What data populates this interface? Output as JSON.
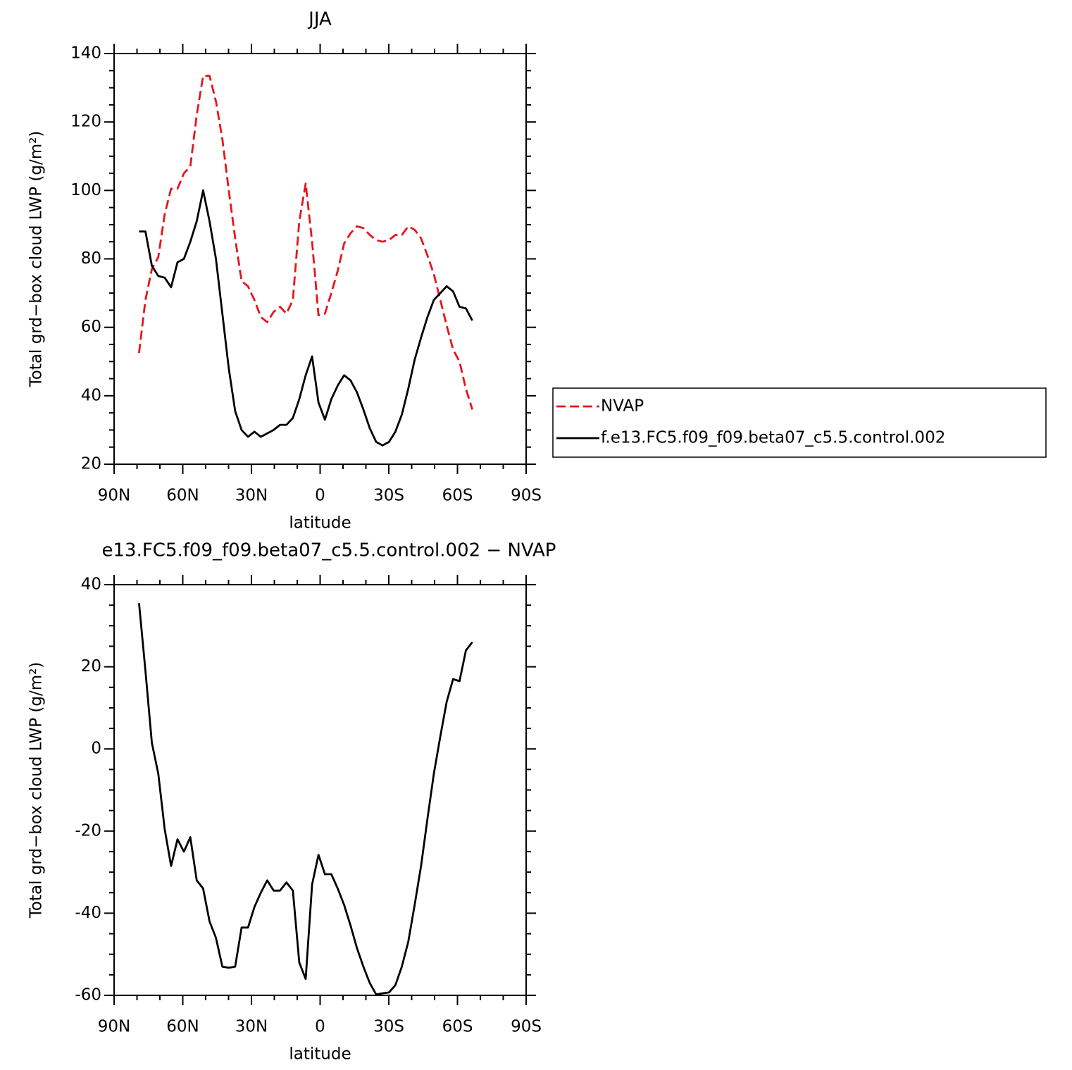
{
  "chart_data": [
    {
      "type": "line",
      "title": "JJA",
      "xlabel": "latitude",
      "ylabel": "Total grd−box cloud LWP (g/m²)",
      "x": [
        79.1,
        76.3,
        73.5,
        70.7,
        67.9,
        65.1,
        62.3,
        59.5,
        56.7,
        53.9,
        51.1,
        48.3,
        45.5,
        42.7,
        39.9,
        37.1,
        34.3,
        31.5,
        28.7,
        25.9,
        23.1,
        20.3,
        17.5,
        14.7,
        11.9,
        9.1,
        6.3,
        3.5,
        0.7,
        -2.1,
        -4.9,
        -7.7,
        -10.5,
        -13.3,
        -16.1,
        -18.9,
        -21.7,
        -24.5,
        -27.3,
        -30.1,
        -32.9,
        -35.7,
        -38.5,
        -41.3,
        -44.1,
        -46.9,
        -49.7,
        -52.5,
        -55.3,
        -58.1,
        -60.9,
        -63.7,
        -66.5
      ],
      "series": [
        {
          "name": "NVAP",
          "color": "#e8141c",
          "linestyle": "dashed",
          "values": [
            52.5,
            68,
            77,
            80.5,
            93,
            100.5,
            100.5,
            105,
            107,
            122,
            133.5,
            133.5,
            126,
            115,
            100,
            86,
            73.5,
            72,
            68,
            63,
            61.5,
            64.5,
            66,
            64,
            68,
            91,
            102,
            85,
            63.5,
            64,
            70,
            76.5,
            84.5,
            87.5,
            89.5,
            89,
            87,
            85.5,
            85,
            85.5,
            87,
            87,
            89.5,
            88.5,
            86,
            81,
            75.5,
            68,
            60.5,
            53.5,
            50,
            42,
            36
          ]
        },
        {
          "name": "f.e13.FC5.f09_f09.beta07_c5.5.control.002",
          "color": "#000000",
          "linestyle": "solid",
          "values": [
            88,
            88,
            78,
            75,
            74.5,
            71.7,
            79,
            80,
            85,
            91,
            100,
            91,
            80,
            64,
            48,
            35.5,
            30,
            28,
            29.5,
            28,
            29,
            30,
            31.5,
            31.5,
            33.5,
            39,
            46,
            51.5,
            38,
            33,
            39,
            43,
            46,
            44.5,
            41,
            36,
            30.5,
            26.5,
            25.5,
            26.5,
            29.5,
            34.5,
            42,
            50.5,
            57,
            63,
            68,
            70,
            72,
            70.5,
            66,
            65.5,
            62
          ]
        }
      ],
      "xlim": [
        90,
        -90
      ],
      "xticks": [
        {
          "value": 90,
          "label": "90N"
        },
        {
          "value": 60,
          "label": "60N"
        },
        {
          "value": 30,
          "label": "30N"
        },
        0,
        {
          "value": -30,
          "label": "30S"
        },
        {
          "value": -60,
          "label": "60S"
        },
        {
          "value": -90,
          "label": "90S"
        }
      ],
      "ylim": [
        20,
        140
      ],
      "yticks": [
        20,
        40,
        60,
        80,
        100,
        120,
        140
      ],
      "legend": "right"
    },
    {
      "type": "line",
      "title": "e13.FC5.f09_f09.beta07_c5.5.control.002 − NVAP",
      "xlabel": "latitude",
      "ylabel": "Total grd−box cloud LWP (g/m²)",
      "x": [
        79.1,
        76.3,
        73.5,
        70.7,
        67.9,
        65.1,
        62.3,
        59.5,
        56.7,
        53.9,
        51.1,
        48.3,
        45.5,
        42.7,
        39.9,
        37.1,
        34.3,
        31.5,
        28.7,
        25.9,
        23.1,
        20.3,
        17.5,
        14.7,
        11.9,
        9.1,
        6.3,
        3.5,
        0.7,
        -2.1,
        -4.9,
        -7.7,
        -10.5,
        -13.3,
        -16.1,
        -18.9,
        -21.7,
        -24.5,
        -27.3,
        -30.1,
        -32.9,
        -35.7,
        -38.5,
        -41.3,
        -44.1,
        -46.9,
        -49.7,
        -52.5,
        -55.3,
        -58.1,
        -60.9,
        -63.7,
        -66.5
      ],
      "series": [
        {
          "color": "#000000",
          "linestyle": "solid",
          "values": [
            35.5,
            19,
            1.5,
            -6,
            -19.5,
            -28.5,
            -22,
            -25,
            -21.5,
            -32,
            -34,
            -42,
            -46,
            -53,
            -53.3,
            -53,
            -43.5,
            -43.5,
            -38.5,
            -35,
            -32,
            -34.5,
            -34.5,
            -32.5,
            -34.5,
            -52,
            -56,
            -33,
            -25.8,
            -30.5,
            -30.5,
            -34,
            -38,
            -43,
            -48.5,
            -53,
            -57,
            -59.8,
            -59.5,
            -59.3,
            -57.5,
            -53,
            -47,
            -38,
            -28.5,
            -17,
            -6,
            3,
            11.5,
            17,
            16.5,
            24,
            26
          ]
        }
      ],
      "xlim": [
        90,
        -90
      ],
      "xticks": [
        {
          "value": 90,
          "label": "90N"
        },
        {
          "value": 60,
          "label": "60N"
        },
        {
          "value": 30,
          "label": "30N"
        },
        0,
        {
          "value": -30,
          "label": "30S"
        },
        {
          "value": -60,
          "label": "60S"
        },
        {
          "value": -90,
          "label": "90S"
        }
      ],
      "ylim": [
        -60,
        40
      ],
      "yticks": [
        -60,
        -40,
        -20,
        0,
        20,
        40
      ]
    }
  ]
}
